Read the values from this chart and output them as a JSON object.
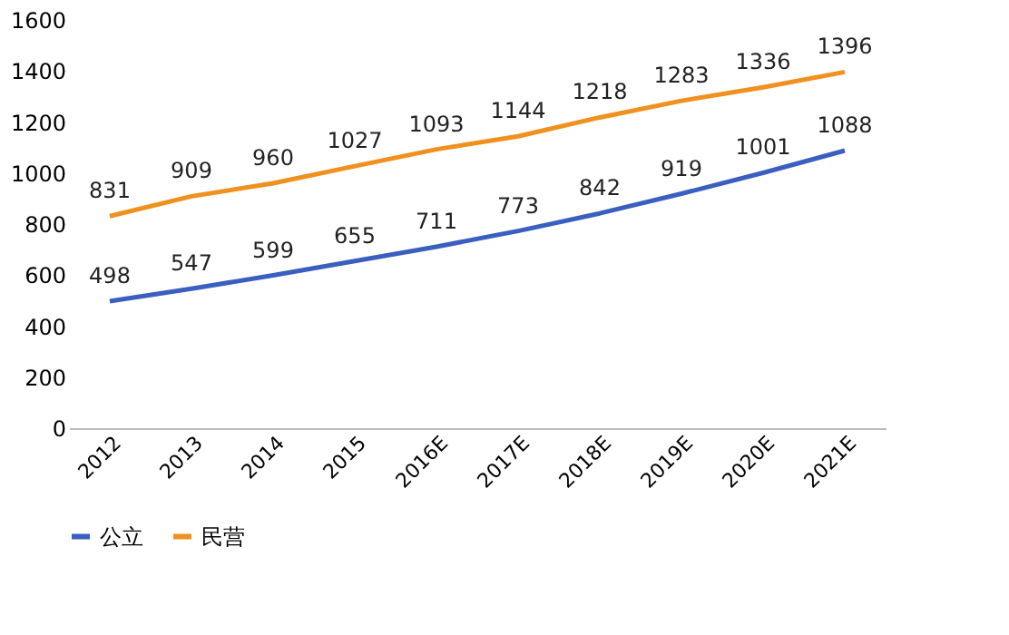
{
  "chart_data": {
    "type": "line",
    "categories": [
      "2012",
      "2013",
      "2014",
      "2015",
      "2016E",
      "2017E",
      "2018E",
      "2019E",
      "2020E",
      "2021E"
    ],
    "series": [
      {
        "name": "公立",
        "color": "#3a5fc0",
        "values": [
          498,
          547,
          599,
          655,
          711,
          773,
          842,
          919,
          1001,
          1088
        ]
      },
      {
        "name": "民营",
        "color": "#f0901e",
        "values": [
          831,
          909,
          960,
          1027,
          1093,
          1144,
          1218,
          1283,
          1336,
          1396
        ]
      }
    ],
    "ylim": [
      0,
      1600
    ],
    "yticks": [
      0,
      200,
      400,
      600,
      800,
      1000,
      1200,
      1400,
      1600
    ],
    "grid": false,
    "legend": "bottom",
    "data_labels": true,
    "marker": "none",
    "line_style": "solid"
  }
}
